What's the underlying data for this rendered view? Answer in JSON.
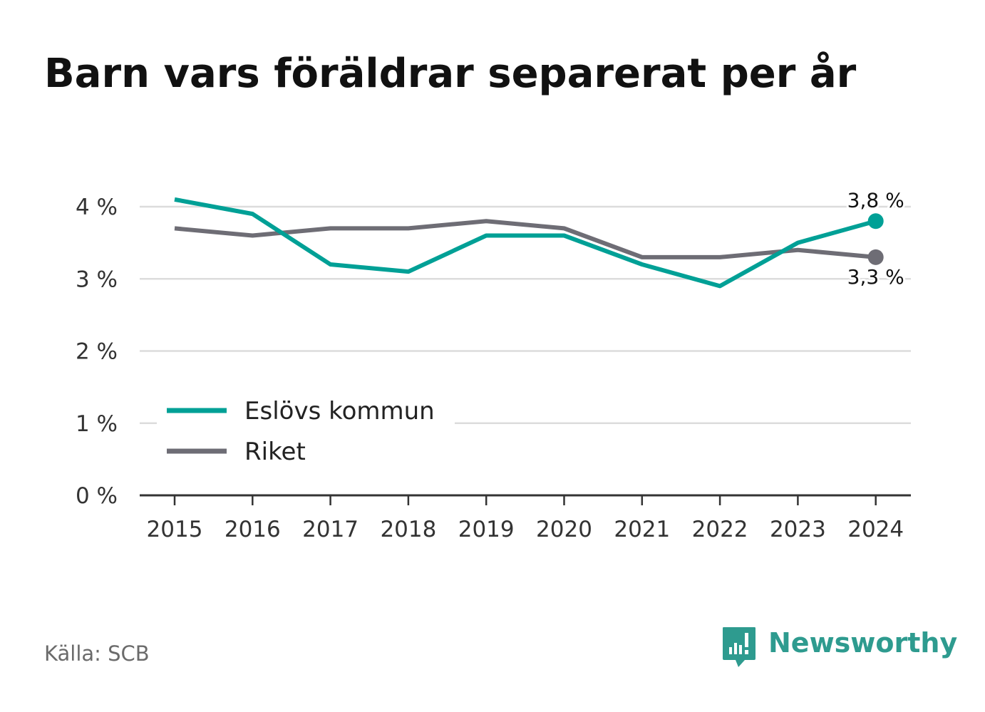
{
  "title": "Barn vars föräldrar separerat per år",
  "source": "Källa: SCB",
  "brand": {
    "name": "Newsworthy",
    "icon": "newsworthy-logo-icon",
    "color": "#2e9b8f"
  },
  "chart_data": {
    "type": "line",
    "title": "Barn vars föräldrar separerat per år",
    "xlabel": "",
    "ylabel": "",
    "x": [
      "2015",
      "2016",
      "2017",
      "2018",
      "2019",
      "2020",
      "2021",
      "2022",
      "2023",
      "2024"
    ],
    "series": [
      {
        "name": "Eslövs kommun",
        "color": "#00a096",
        "values": [
          4.1,
          3.9,
          3.2,
          3.1,
          3.6,
          3.6,
          3.2,
          2.9,
          3.5,
          3.8
        ],
        "end_label": "3,8 %"
      },
      {
        "name": "Riket",
        "color": "#6e6d75",
        "values": [
          3.7,
          3.6,
          3.7,
          3.7,
          3.8,
          3.7,
          3.3,
          3.3,
          3.4,
          3.3
        ],
        "end_label": "3,3 %"
      }
    ],
    "y_ticks": [
      0,
      1,
      2,
      3,
      4
    ],
    "y_tick_labels": [
      "0 %",
      "1 %",
      "2 %",
      "3 %",
      "4 %"
    ],
    "ylim": [
      0,
      4.2
    ],
    "grid": true,
    "legend_position": "bottom-left"
  }
}
